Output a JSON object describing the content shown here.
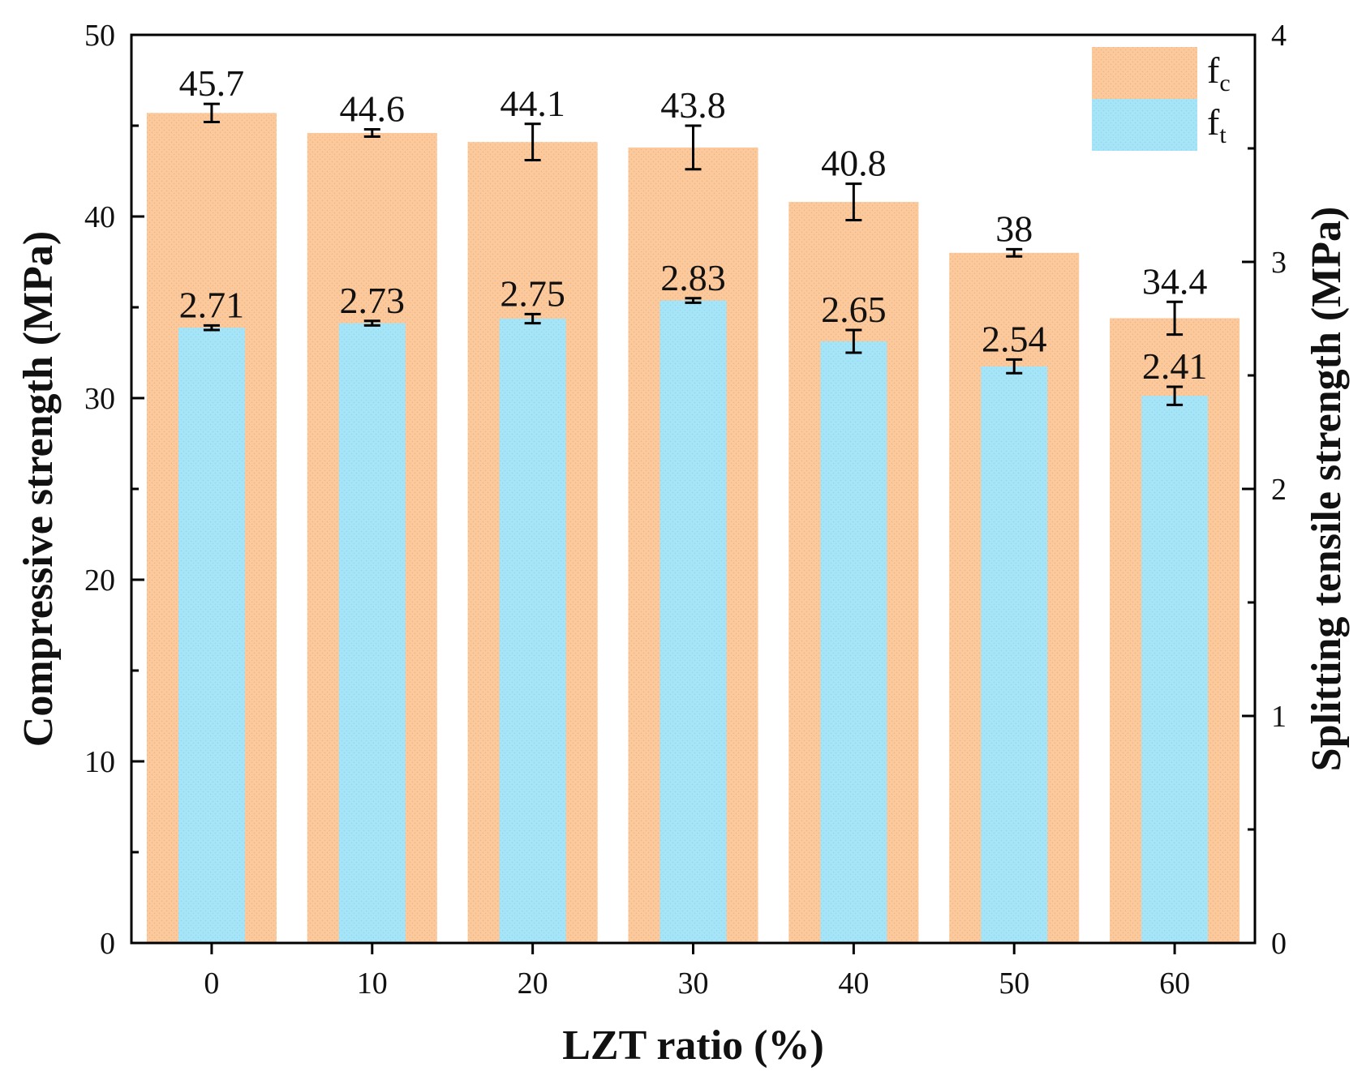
{
  "chart_data": {
    "type": "bar",
    "categories": [
      "0",
      "10",
      "20",
      "30",
      "40",
      "50",
      "60"
    ],
    "series": [
      {
        "name": "fc",
        "legend_main": "f",
        "legend_sub": "c",
        "axis": "left",
        "values": [
          45.7,
          44.6,
          44.1,
          43.8,
          40.8,
          38,
          34.4
        ],
        "labels": [
          "45.7",
          "44.6",
          "44.1",
          "43.8",
          "40.8",
          "38",
          "34.4"
        ],
        "errors": [
          0.5,
          0.2,
          1.0,
          1.2,
          1.0,
          0.2,
          0.9
        ],
        "color": "#FBC99B"
      },
      {
        "name": "ft",
        "legend_main": "f",
        "legend_sub": "t",
        "axis": "right",
        "values": [
          2.71,
          2.73,
          2.75,
          2.83,
          2.65,
          2.54,
          2.41
        ],
        "labels": [
          "2.71",
          "2.73",
          "2.75",
          "2.83",
          "2.65",
          "2.54",
          "2.41"
        ],
        "errors": [
          0.01,
          0.01,
          0.02,
          0.01,
          0.05,
          0.03,
          0.04
        ],
        "color": "#A6E4F8"
      }
    ],
    "xlabel": "LZT ratio (%)",
    "ylabel_left": "Compressive strength (MPa)",
    "ylabel_right": "Splitting tensile strength (MPa)",
    "ylim_left": [
      0,
      50
    ],
    "ylim_right": [
      0,
      4
    ],
    "yticks_left": [
      "0",
      "10",
      "20",
      "30",
      "40",
      "50"
    ],
    "yticks_right": [
      "0",
      "1",
      "2",
      "3",
      "4"
    ],
    "legend_position": "top-right"
  }
}
